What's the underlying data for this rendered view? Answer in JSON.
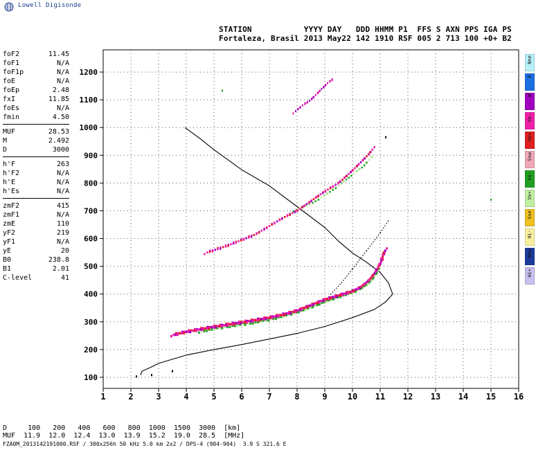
{
  "logo_text": "Lowell Digisonde",
  "header": {
    "line1": "STATION           YYYY DAY   DDD HHMM P1  FFS S AXN PPS IGA PS",
    "line2": "Fortaleza, Brasil 2013 May22 142 1910 RSF 005 2 713 100 +0+ B2"
  },
  "params_groups": [
    [
      {
        "name": "foF2",
        "value": "11.45"
      },
      {
        "name": "foF1",
        "value": "N/A"
      },
      {
        "name": "foF1p",
        "value": "N/A"
      },
      {
        "name": "foE",
        "value": "N/A"
      },
      {
        "name": "foEp",
        "value": "2.48"
      },
      {
        "name": "fxI",
        "value": "11.85"
      },
      {
        "name": "foEs",
        "value": "N/A"
      },
      {
        "name": "fmin",
        "value": "4.50"
      }
    ],
    [
      {
        "name": "MUF",
        "value": "28.53"
      },
      {
        "name": "M",
        "value": "2.492"
      },
      {
        "name": "D",
        "value": "3000"
      }
    ],
    [
      {
        "name": "h'F",
        "value": "263"
      },
      {
        "name": "h'F2",
        "value": "N/A"
      },
      {
        "name": "h'E",
        "value": "N/A"
      },
      {
        "name": "h'Es",
        "value": "N/A"
      }
    ],
    [
      {
        "name": "zmF2",
        "value": "415"
      },
      {
        "name": "zmF1",
        "value": "N/A"
      },
      {
        "name": "zmE",
        "value": "110"
      },
      {
        "name": "yF2",
        "value": "219"
      },
      {
        "name": "yF1",
        "value": "N/A"
      },
      {
        "name": "yE",
        "value": "20"
      },
      {
        "name": "B0",
        "value": "238.8"
      },
      {
        "name": "B1",
        "value": "2.01"
      },
      {
        "name": "C-level",
        "value": "41"
      }
    ]
  ],
  "legend": [
    {
      "label": "Nne",
      "color": "#b8f0f8"
    },
    {
      "label": "E",
      "color": "#1c6fe0"
    },
    {
      "label": "W",
      "color": "#a000c0"
    },
    {
      "label": "Vo-",
      "color": "#f020a8"
    },
    {
      "label": "Vo+",
      "color": "#e02020"
    },
    {
      "label": "Ssw",
      "color": "#f0a8b8"
    },
    {
      "label": "Vx-",
      "color": "#20a020"
    },
    {
      "label": "Vx+",
      "color": "#c0f0a0"
    },
    {
      "label": "Sse",
      "color": "#f0c020"
    },
    {
      "label": "Hi-",
      "color": "#f8f0a0"
    },
    {
      "label": "Nnw",
      "color": "#1c3c9c"
    },
    {
      "label": "Hi+",
      "color": "#c8c0f0"
    }
  ],
  "muf_table": {
    "line1": "D     100   200   400   600   800  1000  1500  3000  [km]",
    "line2": "MUF  11.9  12.0  12.4  13.0  13.9  15.2  19.0  28.5  [MHz]"
  },
  "footer": "FZA0M_2013142191000.RSF / 300x256h 50 kHz 5.0 km 2x2 / DPS-4 (904-904)  3.9 S 321.6 E",
  "chart_data": {
    "type": "scatter",
    "x_ticks": [
      1,
      2,
      3,
      4,
      5,
      6,
      7,
      8,
      9,
      10,
      11,
      12,
      13,
      14,
      15,
      16
    ],
    "y_ticks": [
      100,
      200,
      300,
      400,
      500,
      600,
      700,
      800,
      900,
      1000,
      1100,
      1200
    ],
    "xlim": [
      1,
      16
    ],
    "ylim": [
      60,
      1280
    ],
    "grid": "dotted",
    "profile_curve": [
      [
        2.35,
        108
      ],
      [
        2.4,
        122
      ],
      [
        2.7,
        135
      ],
      [
        3.0,
        150
      ],
      [
        3.5,
        165
      ],
      [
        4.0,
        180
      ],
      [
        5.0,
        200
      ],
      [
        6.0,
        218
      ],
      [
        7.0,
        238
      ],
      [
        8.0,
        258
      ],
      [
        9.0,
        283
      ],
      [
        10.0,
        315
      ],
      [
        10.8,
        345
      ],
      [
        11.2,
        372
      ],
      [
        11.45,
        400
      ],
      [
        11.3,
        440
      ],
      [
        11.0,
        478
      ],
      [
        10.5,
        515
      ],
      [
        10.0,
        548
      ],
      [
        9.5,
        590
      ],
      [
        9.0,
        640
      ],
      [
        8.0,
        715
      ],
      [
        7.0,
        790
      ],
      [
        6.0,
        848
      ],
      [
        5.0,
        920
      ],
      [
        4.5,
        960
      ],
      [
        3.95,
        1000
      ]
    ],
    "o_trace": [
      [
        3.5,
        252
      ],
      [
        4.0,
        264
      ],
      [
        4.5,
        273
      ],
      [
        5.0,
        282
      ],
      [
        5.5,
        290
      ],
      [
        6.0,
        298
      ],
      [
        6.5,
        306
      ],
      [
        7.0,
        315
      ],
      [
        7.5,
        326
      ],
      [
        8.0,
        340
      ],
      [
        8.5,
        360
      ],
      [
        9.0,
        380
      ],
      [
        9.5,
        395
      ],
      [
        10.0,
        410
      ],
      [
        10.3,
        425
      ],
      [
        10.6,
        450
      ],
      [
        10.8,
        475
      ],
      [
        10.95,
        500
      ],
      [
        11.05,
        520
      ],
      [
        11.1,
        540
      ],
      [
        11.2,
        560
      ]
    ],
    "x_trace": [
      [
        4.5,
        265
      ],
      [
        5.0,
        275
      ],
      [
        5.5,
        283
      ],
      [
        6.0,
        290
      ],
      [
        6.5,
        298
      ],
      [
        7.0,
        308
      ],
      [
        7.5,
        320
      ],
      [
        8.0,
        335
      ],
      [
        8.5,
        352
      ],
      [
        9.0,
        372
      ],
      [
        9.5,
        390
      ],
      [
        10.0,
        405
      ],
      [
        10.3,
        420
      ],
      [
        10.6,
        440
      ],
      [
        10.8,
        465
      ],
      [
        10.95,
        490
      ]
    ],
    "multi_trace": [
      [
        4.7,
        548
      ],
      [
        5.5,
        575
      ],
      [
        6.0,
        595
      ],
      [
        6.5,
        615
      ],
      [
        7.0,
        645
      ],
      [
        7.5,
        675
      ],
      [
        8.0,
        700
      ],
      [
        8.5,
        735
      ],
      [
        9.0,
        770
      ],
      [
        9.5,
        800
      ],
      [
        10.0,
        845
      ],
      [
        10.3,
        875
      ],
      [
        10.6,
        905
      ],
      [
        10.75,
        925
      ]
    ],
    "x_multi_trace": [
      [
        7.8,
        695
      ],
      [
        8.5,
        725
      ],
      [
        9.0,
        755
      ],
      [
        9.5,
        790
      ],
      [
        10.0,
        830
      ],
      [
        10.4,
        860
      ],
      [
        10.7,
        895
      ]
    ],
    "triple_trace": [
      [
        7.9,
        1055
      ],
      [
        8.2,
        1080
      ],
      [
        8.5,
        1100
      ],
      [
        8.8,
        1130
      ],
      [
        9.1,
        1160
      ],
      [
        9.3,
        1175
      ]
    ],
    "dotted_trace": [
      [
        9.2,
        398
      ],
      [
        9.6,
        440
      ],
      [
        10.0,
        490
      ],
      [
        10.5,
        555
      ],
      [
        11.0,
        620
      ],
      [
        11.3,
        665
      ]
    ],
    "isolated_points": [
      [
        5.3,
        1133
      ],
      [
        11.2,
        965
      ],
      [
        15.0,
        740
      ],
      [
        2.75,
        108
      ],
      [
        3.5,
        122
      ],
      [
        2.2,
        103
      ]
    ]
  }
}
